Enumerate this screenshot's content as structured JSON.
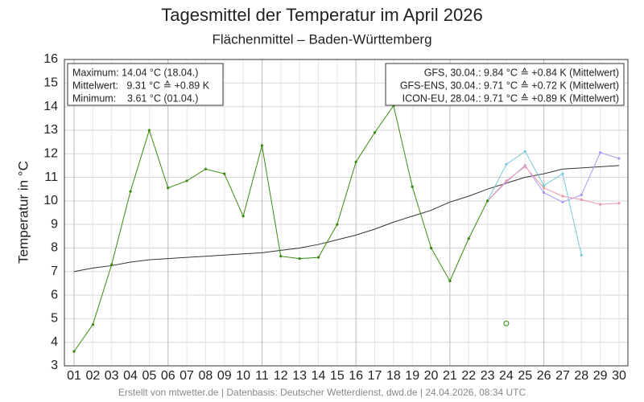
{
  "chart_data": {
    "type": "line",
    "title": "Tagesmittel der Temperatur im April 2026",
    "subtitle": "Flächenmittel – Baden-Württemberg",
    "ylabel": "Temperatur in °C",
    "footer": "Erstellt von mtwetter.de | Datenbasis: Deutscher Wetterdienst, dwd.de | 24.04.2026, 08:34 UTC",
    "stats_box": [
      "Maximum: 14.04 °C (18.04.)",
      "Mittelwert:   9.31 °C ≙ +0.89 K",
      "Minimum:    3.61 °C (01.04.)"
    ],
    "stats_color": "#3a8a10",
    "categories": [
      "01",
      "02",
      "03",
      "04",
      "05",
      "06",
      "07",
      "08",
      "09",
      "10",
      "11",
      "12",
      "13",
      "14",
      "15",
      "16",
      "17",
      "18",
      "19",
      "20",
      "21",
      "22",
      "23",
      "24",
      "25",
      "26",
      "27",
      "28",
      "29",
      "30"
    ],
    "ylim": [
      3,
      16
    ],
    "yticks": [
      3,
      4,
      5,
      6,
      7,
      8,
      9,
      10,
      11,
      12,
      13,
      14,
      15,
      16
    ],
    "grid": true,
    "series": [
      {
        "color": "#333333",
        "markers": false,
        "values": [
          7.0,
          7.15,
          7.25,
          7.4,
          7.5,
          7.55,
          7.6,
          7.65,
          7.7,
          7.75,
          7.8,
          7.9,
          8.0,
          8.15,
          8.35,
          8.55,
          8.8,
          9.1,
          9.35,
          9.6,
          9.95,
          10.2,
          10.5,
          10.75,
          11.0,
          11.15,
          11.35,
          11.4,
          11.45,
          11.5
        ]
      },
      {
        "color": "#aa99ee",
        "markers": true,
        "name": "GFS, 30.04.: 9.84 °C ≙ +0.84 K (Mittelwert)",
        "values": [
          null,
          null,
          null,
          null,
          null,
          null,
          null,
          null,
          null,
          null,
          null,
          null,
          null,
          null,
          null,
          null,
          null,
          null,
          null,
          null,
          null,
          null,
          10.0,
          10.8,
          11.5,
          10.35,
          9.95,
          10.25,
          12.05,
          11.8
        ]
      },
      {
        "color": "#ee99aa",
        "markers": true,
        "name": "GFS-ENS, 30.04.: 9.71 °C ≙ +0.72 K (Mittelwert)",
        "values": [
          null,
          null,
          null,
          null,
          null,
          null,
          null,
          null,
          null,
          null,
          null,
          null,
          null,
          null,
          null,
          null,
          null,
          null,
          null,
          null,
          null,
          null,
          10.0,
          10.85,
          11.45,
          10.55,
          10.2,
          10.05,
          9.85,
          9.9
        ]
      },
      {
        "color": "#77c8d8",
        "markers": true,
        "name": "ICON-EU, 28.04.: 9.71 °C ≙ +0.89 K (Mittelwert)",
        "values": [
          null,
          null,
          null,
          null,
          null,
          null,
          null,
          null,
          null,
          null,
          null,
          null,
          null,
          null,
          null,
          null,
          null,
          null,
          null,
          null,
          null,
          null,
          10.0,
          11.55,
          12.1,
          10.65,
          11.15,
          7.7,
          null,
          null
        ]
      },
      {
        "color": "#3a8a10",
        "markers": true,
        "values": [
          3.61,
          4.75,
          7.3,
          10.4,
          13.0,
          10.55,
          10.85,
          11.35,
          11.15,
          9.35,
          12.35,
          7.65,
          7.55,
          7.6,
          9.0,
          11.65,
          12.9,
          14.04,
          10.6,
          8.0,
          6.6,
          8.4,
          10.0,
          null,
          null,
          null,
          null,
          null,
          null,
          null
        ]
      },
      {
        "color": "#3a8a10",
        "markers": "open",
        "values": [
          null,
          null,
          null,
          null,
          null,
          null,
          null,
          null,
          null,
          null,
          null,
          null,
          null,
          null,
          null,
          null,
          null,
          null,
          null,
          null,
          null,
          null,
          null,
          4.8,
          null,
          null,
          null,
          null,
          null,
          null
        ]
      }
    ]
  }
}
